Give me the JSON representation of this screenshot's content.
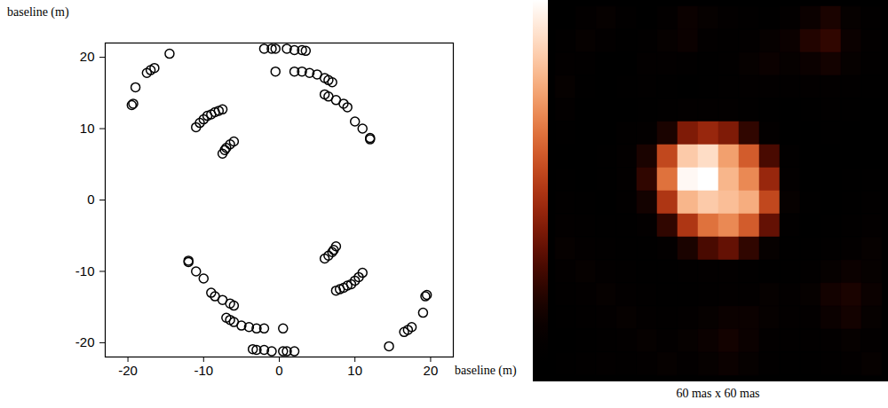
{
  "chart_data": [
    {
      "type": "scatter",
      "xlabel": "baseline (m)",
      "ylabel": "baseline (m)",
      "marker": "circle",
      "color": "#000000",
      "xlim": [
        -23,
        23
      ],
      "ylim": [
        -22,
        22
      ],
      "xticks": [
        -20,
        -10,
        0,
        10,
        20
      ],
      "yticks": [
        -20,
        -10,
        0,
        10,
        20
      ],
      "x": [
        -2,
        -1,
        -0.5,
        1,
        2,
        3,
        3.5,
        -0.5,
        2,
        3,
        4,
        5,
        6,
        6.5,
        7,
        6,
        6.5,
        7.5,
        8.5,
        9,
        10,
        11,
        12,
        12,
        -19.5,
        -19.3,
        -19,
        -17.5,
        -17,
        -16.5,
        -14.5,
        -11,
        -10.5,
        -10,
        -9.5,
        -9,
        -8.5,
        -8,
        -7.5,
        -7.5,
        -7.2,
        -7,
        -6.5,
        -6,
        2,
        1,
        0.5,
        -1,
        -2,
        -3,
        -3.5,
        0.5,
        -2,
        -3,
        -4,
        -5,
        -6,
        -6.5,
        -7,
        -6,
        -6.5,
        -7.5,
        -8.5,
        -9,
        -10,
        -11,
        -12,
        -12,
        19.5,
        19.3,
        19,
        17.5,
        17,
        16.5,
        14.5,
        11,
        10.5,
        10,
        9.5,
        9,
        8.5,
        8,
        7.5,
        7.5,
        7.2,
        7,
        6.5,
        6
      ],
      "values": [
        21.2,
        21.2,
        21.2,
        21.2,
        21,
        21,
        20.9,
        18,
        18,
        18,
        17.8,
        17.6,
        17.1,
        16.8,
        16.5,
        14.8,
        14.5,
        14,
        13.5,
        13,
        11,
        10,
        8.7,
        8.5,
        13.3,
        13.5,
        15.8,
        17.8,
        18.2,
        18.5,
        20.5,
        10.2,
        10.8,
        11.3,
        11.8,
        12,
        12.3,
        12.5,
        12.7,
        6.5,
        7,
        7.3,
        7.8,
        8.2,
        -21.2,
        -21.2,
        -21.2,
        -21.2,
        -21,
        -21,
        -20.9,
        -18,
        -18,
        -18,
        -17.8,
        -17.6,
        -17.1,
        -16.8,
        -16.5,
        -14.8,
        -14.5,
        -14,
        -13.5,
        -13,
        -11,
        -10,
        -8.7,
        -8.5,
        -13.3,
        -13.5,
        -15.8,
        -17.8,
        -18.2,
        -18.5,
        -20.5,
        -10.2,
        -10.8,
        -11.3,
        -11.8,
        -12,
        -12.3,
        -12.5,
        -12.7,
        -6.5,
        -7,
        -7.3,
        -7.8,
        -8.2
      ]
    },
    {
      "type": "heatmap",
      "caption": "60 mas x 60 mas",
      "tick_labels": false,
      "color_range": [
        0,
        1
      ],
      "cells": [
        [
          0.05,
          0.1,
          0.12,
          0.08,
          0.05,
          0.1,
          0.15,
          0.12,
          0.1,
          0.08,
          0.06,
          0.1,
          0.15,
          0.2,
          0.12,
          0.08
        ],
        [
          0.08,
          0.12,
          0.1,
          0.06,
          0.08,
          0.12,
          0.15,
          0.1,
          0.08,
          0.1,
          0.12,
          0.15,
          0.22,
          0.25,
          0.15,
          0.1
        ],
        [
          0.1,
          0.08,
          0.05,
          0.05,
          0.1,
          0.1,
          0.08,
          0.06,
          0.08,
          0.12,
          0.15,
          0.12,
          0.15,
          0.18,
          0.12,
          0.08
        ],
        [
          0.12,
          0.06,
          0.04,
          0.06,
          0.08,
          0.06,
          0.05,
          0.06,
          0.08,
          0.1,
          0.1,
          0.08,
          0.1,
          0.1,
          0.08,
          0.06
        ],
        [
          0.1,
          0.05,
          0.04,
          0.05,
          0.06,
          0.08,
          0.1,
          0.1,
          0.1,
          0.08,
          0.06,
          0.05,
          0.06,
          0.08,
          0.06,
          0.05
        ],
        [
          0.06,
          0.04,
          0.05,
          0.08,
          0.1,
          0.2,
          0.4,
          0.45,
          0.4,
          0.25,
          0.1,
          0.05,
          0.04,
          0.06,
          0.05,
          0.04
        ],
        [
          0.05,
          0.05,
          0.06,
          0.1,
          0.2,
          0.55,
          0.85,
          0.9,
          0.75,
          0.6,
          0.3,
          0.08,
          0.04,
          0.04,
          0.05,
          0.05
        ],
        [
          0.06,
          0.05,
          0.06,
          0.1,
          0.25,
          0.65,
          0.98,
          1.0,
          0.8,
          0.7,
          0.45,
          0.1,
          0.05,
          0.04,
          0.06,
          0.06
        ],
        [
          0.08,
          0.06,
          0.05,
          0.08,
          0.18,
          0.5,
          0.8,
          0.85,
          0.82,
          0.78,
          0.55,
          0.12,
          0.06,
          0.05,
          0.06,
          0.08
        ],
        [
          0.1,
          0.08,
          0.06,
          0.06,
          0.1,
          0.25,
          0.5,
          0.65,
          0.7,
          0.6,
          0.35,
          0.08,
          0.05,
          0.06,
          0.08,
          0.1
        ],
        [
          0.12,
          0.1,
          0.08,
          0.06,
          0.06,
          0.1,
          0.2,
          0.3,
          0.35,
          0.25,
          0.12,
          0.06,
          0.06,
          0.08,
          0.1,
          0.12
        ],
        [
          0.1,
          0.12,
          0.1,
          0.08,
          0.06,
          0.06,
          0.08,
          0.1,
          0.1,
          0.08,
          0.06,
          0.06,
          0.08,
          0.12,
          0.15,
          0.12
        ],
        [
          0.08,
          0.1,
          0.12,
          0.1,
          0.08,
          0.06,
          0.06,
          0.08,
          0.1,
          0.1,
          0.12,
          0.1,
          0.12,
          0.18,
          0.2,
          0.15
        ],
        [
          0.06,
          0.08,
          0.1,
          0.12,
          0.1,
          0.08,
          0.1,
          0.12,
          0.15,
          0.15,
          0.12,
          0.1,
          0.1,
          0.15,
          0.18,
          0.12
        ],
        [
          0.05,
          0.06,
          0.08,
          0.1,
          0.12,
          0.1,
          0.12,
          0.15,
          0.18,
          0.15,
          0.1,
          0.08,
          0.08,
          0.1,
          0.12,
          0.1
        ],
        [
          0.06,
          0.08,
          0.1,
          0.08,
          0.1,
          0.12,
          0.1,
          0.12,
          0.15,
          0.12,
          0.08,
          0.06,
          0.06,
          0.08,
          0.1,
          0.12
        ]
      ]
    }
  ]
}
